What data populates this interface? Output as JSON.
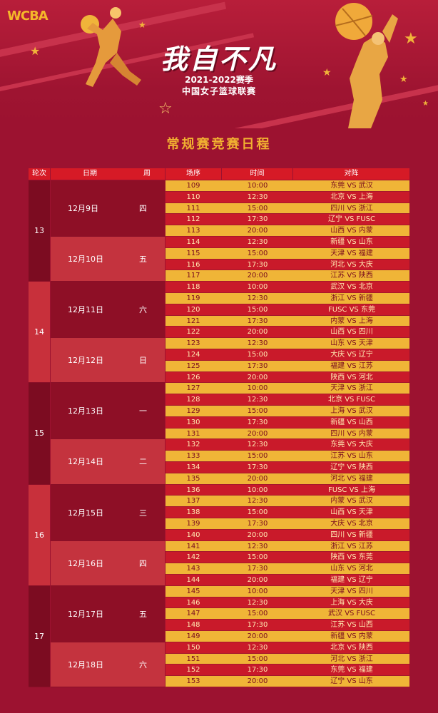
{
  "banner": {
    "logo": "WCBA",
    "title": "我自不凡",
    "season": "2021-2022赛季",
    "league": "中国女子篮球联赛"
  },
  "subtitle": "常规赛竞赛日程",
  "colors": {
    "background": "#9c1230",
    "header": "#d61a26",
    "row_yellow": "#f0b537",
    "row_red": "#c91a2a",
    "round_dark": "#7c0c21",
    "round_light": "#c8303b",
    "date_dark": "#8e0f26",
    "date_light": "#c4333e",
    "accent": "#f1b131"
  },
  "table": {
    "headers": [
      "轮次",
      "日期",
      "周",
      "场序",
      "时间",
      "对阵"
    ],
    "rounds": [
      {
        "round": "13",
        "days": [
          {
            "date": "12月9日",
            "weekday": "四",
            "games": [
              {
                "no": "109",
                "time": "10:00",
                "match": "东莞 VS 武汉"
              },
              {
                "no": "110",
                "time": "12:30",
                "match": "北京 VS 上海"
              },
              {
                "no": "111",
                "time": "15:00",
                "match": "四川 VS 浙江"
              },
              {
                "no": "112",
                "time": "17:30",
                "match": "辽宁 VS FUSC"
              },
              {
                "no": "113",
                "time": "20:00",
                "match": "山西 VS 内蒙"
              }
            ]
          },
          {
            "date": "12月10日",
            "weekday": "五",
            "games": [
              {
                "no": "114",
                "time": "12:30",
                "match": "新疆 VS 山东"
              },
              {
                "no": "115",
                "time": "15:00",
                "match": "天津 VS 福建"
              },
              {
                "no": "116",
                "time": "17:30",
                "match": "河北 VS 大庆"
              },
              {
                "no": "117",
                "time": "20:00",
                "match": "江苏 VS 陕西"
              }
            ]
          }
        ]
      },
      {
        "round": "14",
        "days": [
          {
            "date": "12月11日",
            "weekday": "六",
            "games": [
              {
                "no": "118",
                "time": "10:00",
                "match": "武汉 VS 北京"
              },
              {
                "no": "119",
                "time": "12:30",
                "match": "浙江 VS 新疆"
              },
              {
                "no": "120",
                "time": "15:00",
                "match": "FUSC VS 东莞"
              },
              {
                "no": "121",
                "time": "17:30",
                "match": "内蒙 VS 上海"
              },
              {
                "no": "122",
                "time": "20:00",
                "match": "山西 VS 四川"
              }
            ]
          },
          {
            "date": "12月12日",
            "weekday": "日",
            "games": [
              {
                "no": "123",
                "time": "12:30",
                "match": "山东 VS 天津"
              },
              {
                "no": "124",
                "time": "15:00",
                "match": "大庆 VS 辽宁"
              },
              {
                "no": "125",
                "time": "17:30",
                "match": "福建 VS 江苏"
              },
              {
                "no": "126",
                "time": "20:00",
                "match": "陕西 VS 河北"
              }
            ]
          }
        ]
      },
      {
        "round": "15",
        "days": [
          {
            "date": "12月13日",
            "weekday": "一",
            "games": [
              {
                "no": "127",
                "time": "10:00",
                "match": "天津 VS 浙江"
              },
              {
                "no": "128",
                "time": "12:30",
                "match": "北京 VS FUSC"
              },
              {
                "no": "129",
                "time": "15:00",
                "match": "上海 VS 武汉"
              },
              {
                "no": "130",
                "time": "17:30",
                "match": "新疆 VS 山西"
              },
              {
                "no": "131",
                "time": "20:00",
                "match": "四川 VS 内蒙"
              }
            ]
          },
          {
            "date": "12月14日",
            "weekday": "二",
            "games": [
              {
                "no": "132",
                "time": "12:30",
                "match": "东莞 VS 大庆"
              },
              {
                "no": "133",
                "time": "15:00",
                "match": "江苏 VS 山东"
              },
              {
                "no": "134",
                "time": "17:30",
                "match": "辽宁 VS 陕西"
              },
              {
                "no": "135",
                "time": "20:00",
                "match": "河北 VS 福建"
              }
            ]
          }
        ]
      },
      {
        "round": "16",
        "days": [
          {
            "date": "12月15日",
            "weekday": "三",
            "games": [
              {
                "no": "136",
                "time": "10:00",
                "match": "FUSC VS 上海"
              },
              {
                "no": "137",
                "time": "12:30",
                "match": "内蒙 VS 武汉"
              },
              {
                "no": "138",
                "time": "15:00",
                "match": "山西 VS 天津"
              },
              {
                "no": "139",
                "time": "17:30",
                "match": "大庆 VS 北京"
              },
              {
                "no": "140",
                "time": "20:00",
                "match": "四川 VS 新疆"
              }
            ]
          },
          {
            "date": "12月16日",
            "weekday": "四",
            "games": [
              {
                "no": "141",
                "time": "12:30",
                "match": "浙江 VS 江苏"
              },
              {
                "no": "142",
                "time": "15:00",
                "match": "陕西 VS 东莞"
              },
              {
                "no": "143",
                "time": "17:30",
                "match": "山东 VS 河北"
              },
              {
                "no": "144",
                "time": "20:00",
                "match": "福建 VS 辽宁"
              }
            ]
          }
        ]
      },
      {
        "round": "17",
        "days": [
          {
            "date": "12月17日",
            "weekday": "五",
            "games": [
              {
                "no": "145",
                "time": "10:00",
                "match": "天津 VS 四川"
              },
              {
                "no": "146",
                "time": "12:30",
                "match": "上海 VS 大庆"
              },
              {
                "no": "147",
                "time": "15:00",
                "match": "武汉 VS FUSC"
              },
              {
                "no": "148",
                "time": "17:30",
                "match": "江苏 VS 山西"
              },
              {
                "no": "149",
                "time": "20:00",
                "match": "新疆 VS 内蒙"
              }
            ]
          },
          {
            "date": "12月18日",
            "weekday": "六",
            "games": [
              {
                "no": "150",
                "time": "12:30",
                "match": "北京 VS 陕西"
              },
              {
                "no": "151",
                "time": "15:00",
                "match": "河北 VS 浙江"
              },
              {
                "no": "152",
                "time": "17:30",
                "match": "东莞 VS 福建"
              },
              {
                "no": "153",
                "time": "20:00",
                "match": "辽宁 VS 山东"
              }
            ]
          }
        ]
      }
    ]
  }
}
